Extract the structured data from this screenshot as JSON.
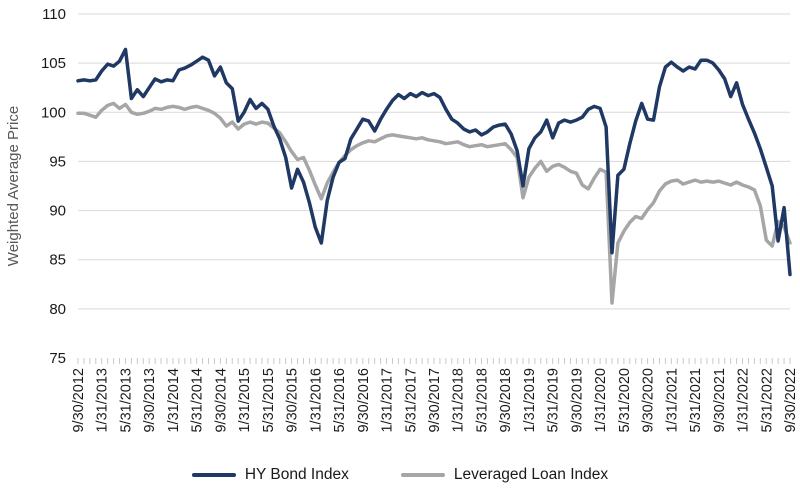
{
  "chart": {
    "y_axis_title": "Weighted Average Price"
  },
  "chart_data": {
    "type": "line",
    "title": "",
    "xlabel": "",
    "ylabel": "Weighted Average Price",
    "ylim": [
      75,
      110
    ],
    "ytick_step": 5,
    "grid": "horizontal",
    "gridline_color": "#D9D9D9",
    "tick_color": "#C9C9C9",
    "legend_position": "bottom",
    "frequency": "monthly",
    "label_interval": 4,
    "x_tick_labels": [
      "9/30/2012",
      "1/31/2013",
      "5/31/2013",
      "9/30/2013",
      "1/31/2014",
      "5/31/2014",
      "9/30/2014",
      "1/31/2015",
      "5/31/2015",
      "9/30/2015",
      "1/31/2016",
      "5/31/2016",
      "9/30/2016",
      "1/31/2017",
      "5/31/2017",
      "9/30/2017",
      "1/31/2018",
      "5/31/2018",
      "9/30/2018",
      "1/31/2019",
      "5/31/2019",
      "9/30/2019",
      "1/31/2020",
      "5/31/2020",
      "9/30/2020",
      "1/31/2021",
      "5/31/2021",
      "9/30/2021",
      "1/31/2022",
      "5/31/2022",
      "9/30/2022"
    ],
    "series": [
      {
        "name": "HY Bond Index",
        "color": "#1F3864",
        "stroke_width": 3.5,
        "values": [
          103.2,
          103.3,
          103.2,
          103.3,
          104.2,
          104.9,
          104.7,
          105.2,
          106.4,
          101.4,
          102.3,
          101.6,
          102.5,
          103.4,
          103.1,
          103.3,
          103.2,
          104.3,
          104.5,
          104.8,
          105.2,
          105.6,
          105.3,
          103.7,
          104.6,
          103.0,
          102.4,
          99.1,
          100.0,
          101.3,
          100.4,
          100.9,
          100.3,
          98.6,
          97.3,
          95.4,
          92.3,
          94.2,
          92.9,
          90.8,
          88.3,
          86.7,
          91.0,
          93.4,
          94.9,
          95.3,
          97.3,
          98.3,
          99.3,
          99.1,
          98.1,
          99.3,
          100.3,
          101.2,
          101.8,
          101.4,
          101.9,
          101.6,
          102.0,
          101.7,
          101.9,
          101.5,
          100.3,
          99.3,
          98.9,
          98.3,
          98.0,
          98.2,
          97.7,
          98.0,
          98.5,
          98.7,
          98.8,
          97.8,
          96.1,
          92.5,
          96.3,
          97.4,
          98.0,
          99.2,
          97.4,
          98.9,
          99.2,
          99.0,
          99.2,
          99.5,
          100.3,
          100.6,
          100.4,
          98.5,
          85.7,
          93.6,
          94.2,
          96.8,
          99.1,
          100.9,
          99.3,
          99.2,
          102.6,
          104.6,
          105.1,
          104.6,
          104.2,
          104.6,
          104.4,
          105.3,
          105.3,
          105.0,
          104.3,
          103.4,
          101.6,
          103.0,
          100.8,
          99.3,
          97.9,
          96.3,
          94.4,
          92.5,
          86.9,
          90.3,
          83.5
        ]
      },
      {
        "name": "Leveraged Loan Index",
        "color": "#A6A6A6",
        "stroke_width": 3.5,
        "values": [
          99.9,
          99.9,
          99.7,
          99.5,
          100.2,
          100.7,
          100.9,
          100.4,
          100.8,
          100.0,
          99.8,
          99.9,
          100.1,
          100.4,
          100.3,
          100.5,
          100.6,
          100.5,
          100.3,
          100.5,
          100.6,
          100.4,
          100.2,
          99.9,
          99.4,
          98.6,
          99.0,
          98.3,
          98.8,
          99.0,
          98.8,
          99.0,
          98.9,
          98.4,
          97.9,
          97.0,
          96.0,
          95.2,
          95.4,
          94.1,
          92.6,
          91.2,
          92.8,
          93.9,
          94.9,
          95.6,
          96.2,
          96.6,
          96.9,
          97.1,
          97.0,
          97.3,
          97.6,
          97.7,
          97.6,
          97.5,
          97.4,
          97.3,
          97.4,
          97.2,
          97.1,
          97.0,
          96.8,
          96.9,
          97.0,
          96.7,
          96.5,
          96.6,
          96.7,
          96.5,
          96.6,
          96.7,
          96.8,
          96.2,
          95.4,
          91.3,
          93.4,
          94.3,
          95.0,
          94.0,
          94.5,
          94.7,
          94.4,
          94.0,
          93.8,
          92.6,
          92.2,
          93.3,
          94.2,
          93.9,
          80.6,
          86.7,
          87.9,
          88.8,
          89.4,
          89.2,
          90.1,
          90.8,
          92.0,
          92.7,
          93.0,
          93.1,
          92.7,
          92.9,
          93.1,
          92.9,
          93.0,
          92.9,
          93.0,
          92.8,
          92.6,
          92.9,
          92.6,
          92.4,
          92.1,
          90.5,
          87.0,
          86.4,
          88.9,
          88.3,
          86.7
        ]
      }
    ]
  }
}
